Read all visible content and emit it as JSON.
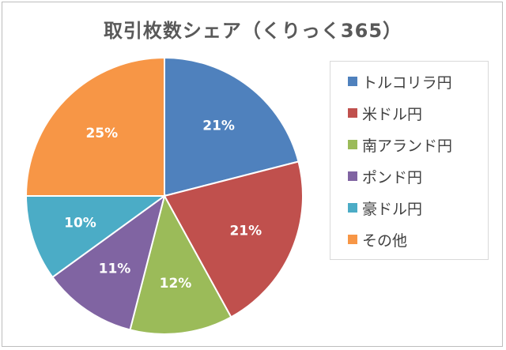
{
  "chart_data": {
    "type": "pie",
    "title": "取引枚数シェア（くりっく365）",
    "categories": [
      "トルコリラ円",
      "米ドル円",
      "南アランド円",
      "ポンド円",
      "豪ドル円",
      "その他"
    ],
    "values": [
      21,
      21,
      12,
      11,
      10,
      25
    ],
    "labels": [
      "21%",
      "21%",
      "12%",
      "11%",
      "10%",
      "25%"
    ],
    "unit": "%",
    "colors": [
      "#4f81bd",
      "#c0504d",
      "#9bbb59",
      "#8064a2",
      "#4bacc6",
      "#f79646"
    ],
    "legend_position": "right",
    "start_angle": "12 o'clock",
    "direction": "clockwise"
  }
}
